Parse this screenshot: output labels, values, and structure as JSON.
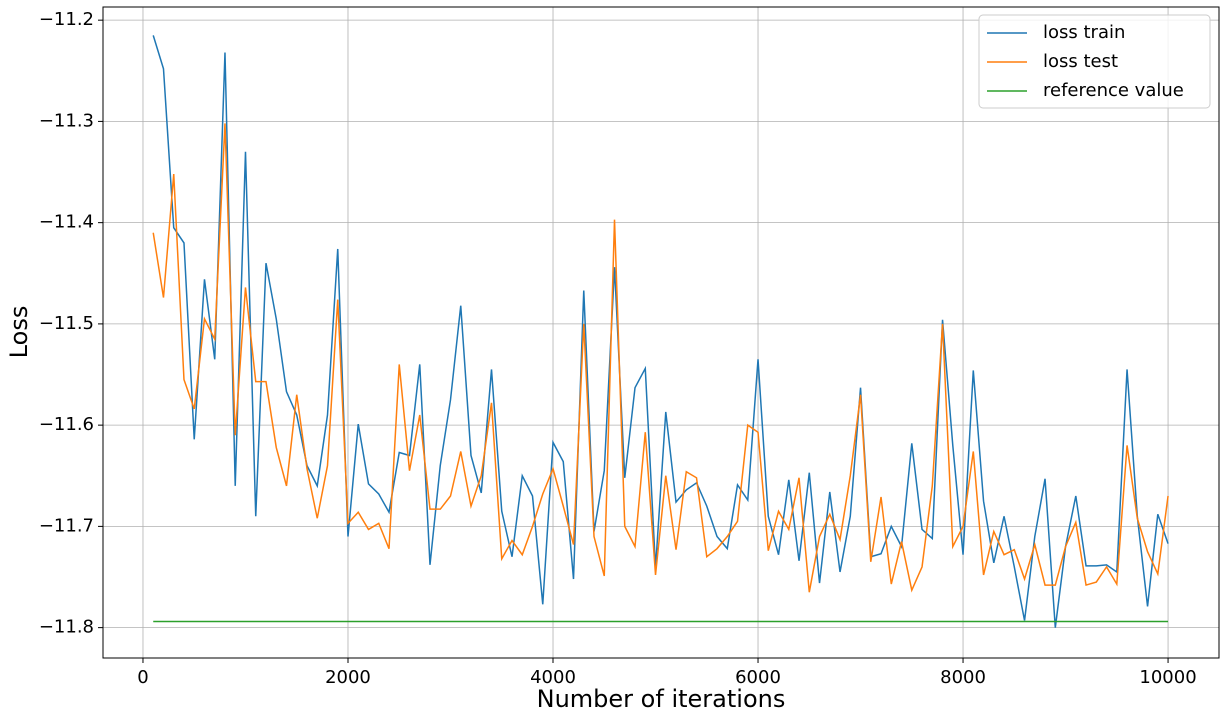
{
  "chart_data": {
    "type": "line",
    "xlabel": "Number of iterations",
    "ylabel": "Loss",
    "x": [
      100,
      200,
      300,
      400,
      500,
      600,
      700,
      800,
      900,
      1000,
      1100,
      1200,
      1300,
      1400,
      1500,
      1600,
      1700,
      1800,
      1900,
      2000,
      2100,
      2200,
      2300,
      2400,
      2500,
      2600,
      2700,
      2800,
      2900,
      3000,
      3100,
      3200,
      3300,
      3400,
      3500,
      3600,
      3700,
      3800,
      3900,
      4000,
      4100,
      4200,
      4300,
      4400,
      4500,
      4600,
      4700,
      4800,
      4900,
      5000,
      5100,
      5200,
      5300,
      5400,
      5500,
      5600,
      5700,
      5800,
      5900,
      6000,
      6100,
      6200,
      6300,
      6400,
      6500,
      6600,
      6700,
      6800,
      6900,
      7000,
      7100,
      7200,
      7300,
      7400,
      7500,
      7600,
      7700,
      7800,
      7900,
      8000,
      8100,
      8200,
      8300,
      8400,
      8500,
      8600,
      8700,
      8800,
      8900,
      9000,
      9100,
      9200,
      9300,
      9400,
      9500,
      9600,
      9700,
      9800,
      9900,
      10000
    ],
    "series": [
      {
        "name": "loss train",
        "color": "#1f77b4",
        "values": [
          -11.215,
          -11.248,
          -11.405,
          -11.42,
          -11.614,
          -11.456,
          -11.535,
          -11.232,
          -11.66,
          -11.33,
          -11.69,
          -11.44,
          -11.495,
          -11.567,
          -11.59,
          -11.64,
          -11.66,
          -11.59,
          -11.426,
          -11.71,
          -11.599,
          -11.658,
          -11.668,
          -11.686,
          -11.627,
          -11.63,
          -11.54,
          -11.738,
          -11.64,
          -11.575,
          -11.482,
          -11.63,
          -11.667,
          -11.545,
          -11.685,
          -11.73,
          -11.65,
          -11.67,
          -11.777,
          -11.617,
          -11.636,
          -11.752,
          -11.467,
          -11.705,
          -11.645,
          -11.444,
          -11.652,
          -11.563,
          -11.544,
          -11.741,
          -11.587,
          -11.676,
          -11.664,
          -11.657,
          -11.68,
          -11.71,
          -11.722,
          -11.659,
          -11.674,
          -11.535,
          -11.69,
          -11.728,
          -11.654,
          -11.734,
          -11.647,
          -11.756,
          -11.666,
          -11.745,
          -11.69,
          -11.563,
          -11.73,
          -11.727,
          -11.7,
          -11.72,
          -11.618,
          -11.703,
          -11.712,
          -11.496,
          -11.62,
          -11.728,
          -11.546,
          -11.675,
          -11.736,
          -11.69,
          -11.74,
          -11.793,
          -11.71,
          -11.653,
          -11.8,
          -11.72,
          -11.67,
          -11.739,
          -11.739,
          -11.738,
          -11.745,
          -11.545,
          -11.69,
          -11.779,
          -11.688,
          -11.717
        ]
      },
      {
        "name": "loss test",
        "color": "#ff7f0e",
        "values": [
          -11.41,
          -11.474,
          -11.352,
          -11.555,
          -11.584,
          -11.495,
          -11.515,
          -11.302,
          -11.61,
          -11.464,
          -11.557,
          -11.557,
          -11.622,
          -11.66,
          -11.57,
          -11.643,
          -11.692,
          -11.64,
          -11.476,
          -11.697,
          -11.686,
          -11.703,
          -11.697,
          -11.722,
          -11.54,
          -11.645,
          -11.59,
          -11.683,
          -11.683,
          -11.67,
          -11.626,
          -11.68,
          -11.65,
          -11.578,
          -11.732,
          -11.714,
          -11.728,
          -11.7,
          -11.668,
          -11.643,
          -11.68,
          -11.718,
          -11.5,
          -11.71,
          -11.749,
          -11.397,
          -11.7,
          -11.72,
          -11.607,
          -11.748,
          -11.65,
          -11.723,
          -11.646,
          -11.652,
          -11.73,
          -11.722,
          -11.71,
          -11.695,
          -11.6,
          -11.607,
          -11.724,
          -11.685,
          -11.703,
          -11.652,
          -11.765,
          -11.71,
          -11.688,
          -11.713,
          -11.65,
          -11.57,
          -11.735,
          -11.671,
          -11.757,
          -11.715,
          -11.763,
          -11.74,
          -11.66,
          -11.5,
          -11.72,
          -11.7,
          -11.626,
          -11.748,
          -11.705,
          -11.728,
          -11.723,
          -11.752,
          -11.718,
          -11.758,
          -11.758,
          -11.72,
          -11.696,
          -11.758,
          -11.755,
          -11.74,
          -11.757,
          -11.62,
          -11.692,
          -11.725,
          -11.747,
          -11.67
        ]
      },
      {
        "name": "reference value",
        "color": "#2ca02c",
        "values": [
          -11.794,
          -11.794,
          -11.794,
          -11.794,
          -11.794,
          -11.794,
          -11.794,
          -11.794,
          -11.794,
          -11.794,
          -11.794,
          -11.794,
          -11.794,
          -11.794,
          -11.794,
          -11.794,
          -11.794,
          -11.794,
          -11.794,
          -11.794,
          -11.794,
          -11.794,
          -11.794,
          -11.794,
          -11.794,
          -11.794,
          -11.794,
          -11.794,
          -11.794,
          -11.794,
          -11.794,
          -11.794,
          -11.794,
          -11.794,
          -11.794,
          -11.794,
          -11.794,
          -11.794,
          -11.794,
          -11.794,
          -11.794,
          -11.794,
          -11.794,
          -11.794,
          -11.794,
          -11.794,
          -11.794,
          -11.794,
          -11.794,
          -11.794,
          -11.794,
          -11.794,
          -11.794,
          -11.794,
          -11.794,
          -11.794,
          -11.794,
          -11.794,
          -11.794,
          -11.794,
          -11.794,
          -11.794,
          -11.794,
          -11.794,
          -11.794,
          -11.794,
          -11.794,
          -11.794,
          -11.794,
          -11.794,
          -11.794,
          -11.794,
          -11.794,
          -11.794,
          -11.794,
          -11.794,
          -11.794,
          -11.794,
          -11.794,
          -11.794,
          -11.794,
          -11.794,
          -11.794,
          -11.794,
          -11.794,
          -11.794,
          -11.794,
          -11.794,
          -11.794,
          -11.794,
          -11.794,
          -11.794,
          -11.794,
          -11.794,
          -11.794,
          -11.794,
          -11.794,
          -11.794,
          -11.794,
          -11.794
        ]
      }
    ],
    "xlim": [
      -390,
      10497
    ],
    "ylim": [
      -11.83,
      -11.187
    ],
    "xticks": [
      0,
      2000,
      4000,
      6000,
      8000,
      10000
    ],
    "yticks": [
      {
        "value": -11.8,
        "label": "−11.8"
      },
      {
        "value": -11.7,
        "label": "−11.7"
      },
      {
        "value": -11.6,
        "label": "−11.6"
      },
      {
        "value": -11.5,
        "label": "−11.5"
      },
      {
        "value": -11.4,
        "label": "−11.4"
      },
      {
        "value": -11.3,
        "label": "−11.3"
      },
      {
        "value": -11.2,
        "label": "−11.2"
      }
    ],
    "grid": true,
    "legend": "upper right"
  }
}
